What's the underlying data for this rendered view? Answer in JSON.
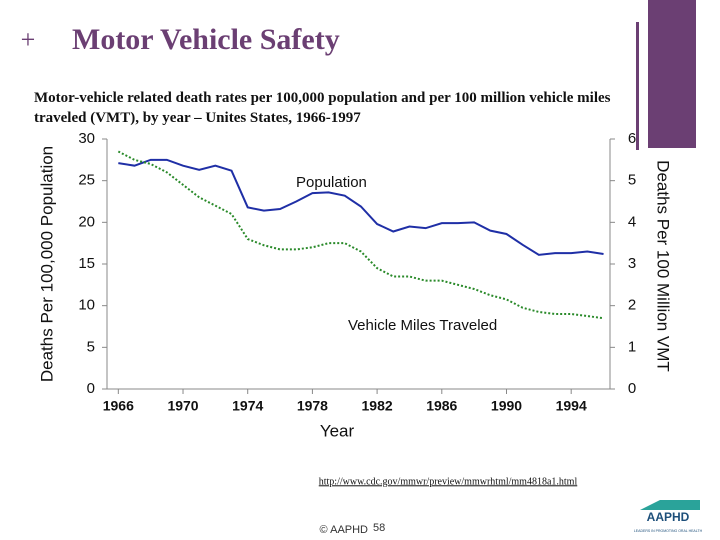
{
  "slide": {
    "plus": "+",
    "title": "Motor Vehicle Safety",
    "source_url": "http://www.cdc.gov/mmwr/preview/mmwrhtml/mm4818a1.html",
    "footer": "© AAPHD",
    "page_number": 58,
    "logo": "AAPHD",
    "logo_tagline": "LEADERS IN PROMOTING ORAL HEALTH"
  },
  "chart_data": {
    "type": "line",
    "title": "Motor-vehicle related death rates per 100,000 population and per 100 million vehicle miles traveled (VMT), by year – Unites States, 1966-1997",
    "x_label": "Year",
    "y_label": "Deaths Per 100,000 Population",
    "y2_label": "Deaths Per 100 Million VMT",
    "x": [
      1966,
      1967,
      1968,
      1969,
      1970,
      1971,
      1972,
      1973,
      1974,
      1975,
      1976,
      1977,
      1978,
      1979,
      1980,
      1981,
      1982,
      1983,
      1984,
      1985,
      1986,
      1987,
      1988,
      1989,
      1990,
      1991,
      1992,
      1993,
      1994,
      1995,
      1996
    ],
    "series": [
      {
        "name": "Population",
        "color": "#1f2fa6",
        "axis": "y",
        "values": [
          27.1,
          26.8,
          27.5,
          27.5,
          26.8,
          26.3,
          26.8,
          26.2,
          21.8,
          21.4,
          21.6,
          22.5,
          23.5,
          23.6,
          23.2,
          21.9,
          19.8,
          18.9,
          19.5,
          19.3,
          19.9,
          19.9,
          20.0,
          19.0,
          18.6,
          17.3,
          16.1,
          16.3,
          16.3,
          16.5,
          16.2
        ]
      },
      {
        "name": "Vehicle Miles Traveled",
        "color": "#2a8a2a",
        "axis": "y2",
        "dashed": true,
        "values": [
          5.7,
          5.5,
          5.4,
          5.2,
          4.9,
          4.6,
          4.4,
          4.2,
          3.6,
          3.45,
          3.35,
          3.35,
          3.4,
          3.5,
          3.5,
          3.3,
          2.9,
          2.7,
          2.7,
          2.6,
          2.6,
          2.5,
          2.4,
          2.25,
          2.15,
          1.95,
          1.85,
          1.8,
          1.8,
          1.75,
          1.7
        ]
      }
    ],
    "xlim": [
      1965.3,
      1996.4
    ],
    "xticks": [
      1966,
      1970,
      1974,
      1978,
      1982,
      1986,
      1990,
      1994
    ],
    "ylim": [
      0,
      30
    ],
    "yticks": [
      0,
      5,
      10,
      15,
      20,
      25,
      30
    ],
    "y2lim": [
      0,
      6
    ],
    "y2ticks": [
      0,
      1,
      2,
      3,
      4,
      5,
      6
    ]
  }
}
